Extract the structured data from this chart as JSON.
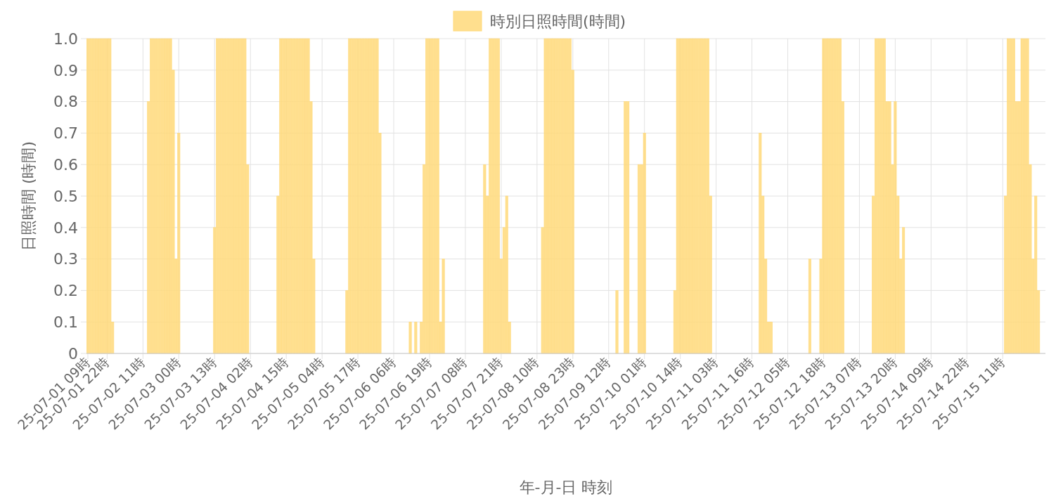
{
  "chart_data": {
    "type": "bar",
    "xlabel": "年-月-日 時刻",
    "ylabel": "日照時間 (時間)",
    "categories": [
      "25-07-01 09時",
      null,
      null,
      null,
      null,
      null,
      null,
      "25-07-01 22時",
      null,
      null,
      null,
      null,
      null,
      null,
      null,
      null,
      null,
      null,
      null,
      null,
      "25-07-02 11時",
      null,
      null,
      null,
      null,
      null,
      null,
      null,
      null,
      null,
      null,
      null,
      null,
      "25-07-03 00時",
      null,
      null,
      null,
      null,
      null,
      null,
      null,
      null,
      null,
      null,
      null,
      null,
      "25-07-03 13時",
      null,
      null,
      null,
      null,
      null,
      null,
      null,
      null,
      null,
      null,
      null,
      null,
      "25-07-04 02時",
      null,
      null,
      null,
      null,
      null,
      null,
      null,
      null,
      null,
      null,
      null,
      null,
      "25-07-04 15時",
      null,
      null,
      null,
      null,
      null,
      null,
      null,
      null,
      null,
      null,
      null,
      null,
      "25-07-05 04時",
      null,
      null,
      null,
      null,
      null,
      null,
      null,
      null,
      null,
      null,
      null,
      null,
      "25-07-05 17時",
      null,
      null,
      null,
      null,
      null,
      null,
      null,
      null,
      null,
      null,
      null,
      null,
      "25-07-06 06時",
      null,
      null,
      null,
      null,
      null,
      null,
      null,
      null,
      null,
      null,
      null,
      null,
      "25-07-06 19時",
      null,
      null,
      null,
      null,
      null,
      null,
      null,
      null,
      null,
      null,
      null,
      null,
      "25-07-07 08時",
      null,
      null,
      null,
      null,
      null,
      null,
      null,
      null,
      null,
      null,
      null,
      null,
      "25-07-07 21時",
      null,
      null,
      null,
      null,
      null,
      null,
      null,
      null,
      null,
      null,
      null,
      null,
      "25-07-08 10時",
      null,
      null,
      null,
      null,
      null,
      null,
      null,
      null,
      null,
      null,
      null,
      null,
      "25-07-08 23時",
      null,
      null,
      null,
      null,
      null,
      null,
      null,
      null,
      null,
      null,
      null,
      null,
      "25-07-09 12時",
      null,
      null,
      null,
      null,
      null,
      null,
      null,
      null,
      null,
      null,
      null,
      null,
      "25-07-10 01時",
      null,
      null,
      null,
      null,
      null,
      null,
      null,
      null,
      null,
      null,
      null,
      null,
      "25-07-10 14時",
      null,
      null,
      null,
      null,
      null,
      null,
      null,
      null,
      null,
      null,
      null,
      null,
      "25-07-11 03時",
      null,
      null,
      null,
      null,
      null,
      null,
      null,
      null,
      null,
      null,
      null,
      null,
      "25-07-11 16時",
      null,
      null,
      null,
      null,
      null,
      null,
      null,
      null,
      null,
      null,
      null,
      null,
      "25-07-12 05時",
      null,
      null,
      null,
      null,
      null,
      null,
      null,
      null,
      null,
      null,
      null,
      null,
      "25-07-12 18時",
      null,
      null,
      null,
      null,
      null,
      null,
      null,
      null,
      null,
      null,
      null,
      null,
      "25-07-13 07時",
      null,
      null,
      null,
      null,
      null,
      null,
      null,
      null,
      null,
      null,
      null,
      null,
      "25-07-13 20時",
      null,
      null,
      null,
      null,
      null,
      null,
      null,
      null,
      null,
      null,
      null,
      null,
      "25-07-14 09時",
      null,
      null,
      null,
      null,
      null,
      null,
      null,
      null,
      null,
      null,
      null,
      null,
      "25-07-14 22時",
      null,
      null,
      null,
      null,
      null,
      null,
      null,
      null,
      null,
      null,
      null,
      null,
      "25-07-15 11時",
      null,
      null,
      null,
      null,
      null,
      null,
      null,
      null,
      null,
      null,
      null,
      null,
      null,
      null,
      null
    ],
    "series": [
      {
        "name": "時別日照時間(時間)",
        "color": "#ffd97a",
        "values": [
          1,
          1,
          1,
          1,
          1,
          1,
          1,
          1,
          1,
          0.1,
          0,
          0,
          0,
          0,
          0,
          0,
          0,
          0,
          0,
          0,
          0,
          0,
          0.8,
          1,
          1,
          1,
          1,
          1,
          1,
          1,
          1,
          0.9,
          0.3,
          0.7,
          0,
          0,
          0,
          0,
          0,
          0,
          0,
          0,
          0,
          0,
          0,
          0,
          0.4,
          1,
          1,
          1,
          1,
          1,
          1,
          1,
          1,
          1,
          1,
          1,
          0.6,
          0,
          0,
          0,
          0,
          0,
          0,
          0,
          0,
          0,
          0,
          0.5,
          1,
          1,
          1,
          1,
          1,
          1,
          1,
          1,
          1,
          1,
          1,
          0.8,
          0.3,
          0,
          0,
          0,
          0,
          0,
          0,
          0,
          0,
          0,
          0,
          0,
          0.2,
          1,
          1,
          1,
          1,
          1,
          1,
          1,
          1,
          1,
          1,
          1,
          0.7,
          0,
          0,
          0,
          0,
          0,
          0,
          0,
          0,
          0,
          0,
          0.1,
          0,
          0.1,
          0,
          0.1,
          0.6,
          1,
          1,
          1,
          1,
          1,
          0.1,
          0.3,
          0,
          0,
          0,
          0,
          0,
          0,
          0,
          0,
          0,
          0,
          0,
          0,
          0,
          0,
          0.6,
          0.5,
          1,
          1,
          1,
          1,
          0.3,
          0.4,
          0.5,
          0.1,
          0,
          0,
          0,
          0,
          0,
          0,
          0,
          0,
          0,
          0,
          0,
          0.4,
          1,
          1,
          1,
          1,
          1,
          1,
          1,
          1,
          1,
          1,
          0.9,
          0,
          0,
          0,
          0,
          0,
          0,
          0,
          0,
          0,
          0,
          0,
          0,
          0,
          0,
          0,
          0.2,
          0,
          0,
          0.8,
          0.8,
          0,
          0,
          0,
          0.6,
          0.6,
          0.7,
          0,
          0,
          0,
          0,
          0,
          0,
          0,
          0,
          0,
          0,
          0.2,
          1,
          1,
          1,
          1,
          1,
          1,
          1,
          1,
          1,
          1,
          1,
          1,
          0.5,
          0,
          0,
          0,
          0,
          0,
          0,
          0,
          0,
          0,
          0,
          0,
          0,
          0,
          0,
          0,
          0,
          0,
          0.7,
          0.5,
          0.3,
          0.1,
          0.1,
          0,
          0,
          0,
          0,
          0,
          0,
          0,
          0,
          0,
          0,
          0,
          0,
          0,
          0.3,
          0,
          0,
          0,
          0.3,
          1,
          1,
          1,
          1,
          1,
          1,
          1,
          0.8,
          0,
          0,
          0,
          0,
          0,
          0,
          0,
          0,
          0,
          0,
          0.5,
          1,
          1,
          1,
          1,
          0.8,
          0.8,
          0.6,
          0.8,
          0.5,
          0.3,
          0.4,
          0,
          0,
          0,
          0,
          0,
          0,
          0,
          0,
          0,
          0,
          0,
          0,
          0,
          0,
          0,
          0,
          0,
          0,
          0,
          0,
          0,
          0,
          0,
          0,
          0,
          0,
          0,
          0,
          0,
          0,
          0,
          0,
          0,
          0,
          0,
          0,
          0.5,
          1,
          1,
          1,
          0.8,
          0.8,
          1,
          1,
          1,
          0.6,
          0.3,
          0.5,
          0.2,
          0,
          0
        ]
      }
    ],
    "ylim": [
      0,
      1
    ],
    "yticks": [
      0,
      0.1,
      0.2,
      0.3,
      0.4,
      0.5,
      0.6,
      0.7,
      0.8,
      0.9,
      {
        "value": 1,
        "label": "1.0"
      }
    ],
    "grid": true,
    "legend": "top"
  }
}
